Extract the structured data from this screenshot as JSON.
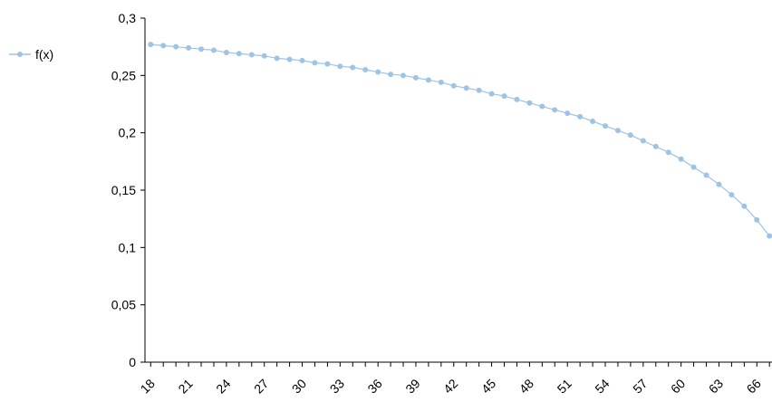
{
  "chart_data": {
    "type": "line",
    "series": [
      {
        "name": "f(x)",
        "x": [
          18,
          19,
          20,
          21,
          22,
          23,
          24,
          25,
          26,
          27,
          28,
          29,
          30,
          31,
          32,
          33,
          34,
          35,
          36,
          37,
          38,
          39,
          40,
          41,
          42,
          43,
          44,
          45,
          46,
          47,
          48,
          49,
          50,
          51,
          52,
          53,
          54,
          55,
          56,
          57,
          58,
          59,
          60,
          61,
          62,
          63,
          64,
          65,
          66,
          67
        ],
        "values": [
          0.277,
          0.276,
          0.275,
          0.274,
          0.273,
          0.272,
          0.27,
          0.269,
          0.268,
          0.267,
          0.265,
          0.264,
          0.263,
          0.261,
          0.26,
          0.258,
          0.257,
          0.255,
          0.253,
          0.251,
          0.25,
          0.248,
          0.246,
          0.244,
          0.241,
          0.239,
          0.237,
          0.234,
          0.232,
          0.229,
          0.226,
          0.223,
          0.22,
          0.217,
          0.214,
          0.21,
          0.206,
          0.202,
          0.198,
          0.193,
          0.188,
          0.183,
          0.177,
          0.17,
          0.163,
          0.155,
          0.146,
          0.136,
          0.124,
          0.11
        ]
      }
    ],
    "ylim": [
      0,
      0.3
    ],
    "yticks": [
      "0",
      "0,05",
      "0,1",
      "0,15",
      "0,2",
      "0,25",
      "0,3"
    ],
    "xticks": [
      "18",
      "21",
      "24",
      "27",
      "30",
      "33",
      "36",
      "39",
      "42",
      "45",
      "48",
      "51",
      "54",
      "57",
      "60",
      "63",
      "66"
    ],
    "grid": false,
    "legend_position": "top-left",
    "colors": {
      "series": "#9dc3e6",
      "axis": "#000000"
    }
  }
}
